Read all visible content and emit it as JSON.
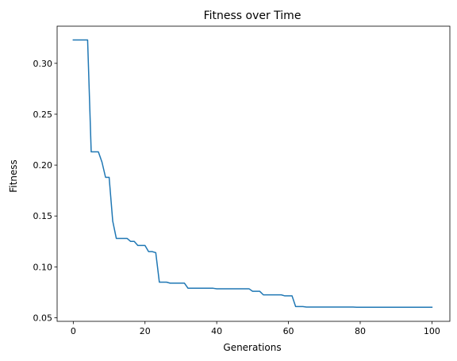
{
  "chart_data": {
    "type": "line",
    "title": "Fitness over Time",
    "xlabel": "Generations",
    "ylabel": "Fitness",
    "xlim": [
      -4.5,
      105
    ],
    "ylim": [
      0.0465,
      0.3365
    ],
    "x_ticks": [
      0,
      20,
      40,
      60,
      80,
      100
    ],
    "x_tick_labels": [
      "0",
      "20",
      "40",
      "60",
      "80",
      "100"
    ],
    "y_ticks": [
      0.05,
      0.1,
      0.15,
      0.2,
      0.25,
      0.3
    ],
    "y_tick_labels": [
      "0.05",
      "0.10",
      "0.15",
      "0.20",
      "0.25",
      "0.30"
    ],
    "grid": false,
    "legend": "none",
    "series": [
      {
        "color": "#1f77b4",
        "x": [
          0,
          1,
          2,
          3,
          4,
          5,
          6,
          7,
          8,
          9,
          10,
          11,
          12,
          13,
          14,
          15,
          16,
          17,
          18,
          19,
          20,
          21,
          22,
          23,
          24,
          25,
          26,
          27,
          28,
          29,
          30,
          31,
          32,
          33,
          34,
          35,
          36,
          37,
          38,
          39,
          40,
          41,
          42,
          43,
          44,
          45,
          46,
          47,
          48,
          49,
          50,
          51,
          52,
          53,
          54,
          55,
          56,
          57,
          58,
          59,
          60,
          61,
          62,
          63,
          64,
          65,
          66,
          67,
          68,
          69,
          70,
          71,
          72,
          73,
          74,
          75,
          76,
          77,
          78,
          79,
          80,
          81,
          82,
          83,
          84,
          85,
          86,
          87,
          88,
          89,
          90,
          91,
          92,
          93,
          94,
          95,
          96,
          97,
          98,
          99,
          100
        ],
        "y": [
          0.323,
          0.323,
          0.323,
          0.323,
          0.323,
          0.213,
          0.213,
          0.213,
          0.203,
          0.188,
          0.188,
          0.145,
          0.128,
          0.128,
          0.128,
          0.128,
          0.125,
          0.125,
          0.121,
          0.121,
          0.121,
          0.115,
          0.115,
          0.114,
          0.085,
          0.085,
          0.085,
          0.084,
          0.084,
          0.084,
          0.084,
          0.084,
          0.079,
          0.079,
          0.079,
          0.079,
          0.079,
          0.079,
          0.079,
          0.079,
          0.0785,
          0.0785,
          0.0785,
          0.0785,
          0.0785,
          0.0785,
          0.0785,
          0.0785,
          0.0785,
          0.0785,
          0.076,
          0.076,
          0.076,
          0.0725,
          0.0725,
          0.0725,
          0.0725,
          0.0725,
          0.0725,
          0.0715,
          0.0715,
          0.0715,
          0.061,
          0.061,
          0.061,
          0.0605,
          0.0605,
          0.0605,
          0.0605,
          0.0605,
          0.0605,
          0.0605,
          0.0605,
          0.0605,
          0.0605,
          0.0605,
          0.0605,
          0.0605,
          0.0605,
          0.0603,
          0.0603,
          0.0603,
          0.0603,
          0.0603,
          0.0603,
          0.0603,
          0.0603,
          0.0603,
          0.0603,
          0.0603,
          0.0603,
          0.0603,
          0.0603,
          0.0603,
          0.0603,
          0.0603,
          0.0603,
          0.0603,
          0.0603,
          0.0603,
          0.0603
        ]
      }
    ]
  }
}
